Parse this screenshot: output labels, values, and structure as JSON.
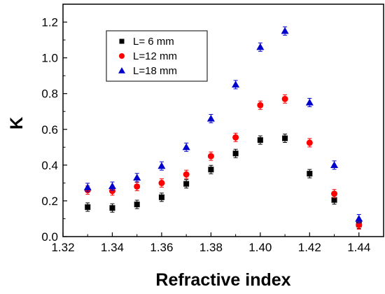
{
  "chart_data": {
    "type": "scatter",
    "xlabel": "Refractive index",
    "ylabel": "K",
    "xlim": [
      1.32,
      1.45
    ],
    "ylim": [
      0.0,
      1.3
    ],
    "x_ticks": [
      1.32,
      1.34,
      1.36,
      1.38,
      1.4,
      1.42,
      1.44
    ],
    "x_tick_labels": [
      "1.32",
      "1.34",
      "1.36",
      "1.38",
      "1.40",
      "1.42",
      "1.44"
    ],
    "y_ticks": [
      0.0,
      0.2,
      0.4,
      0.6,
      0.8,
      1.0,
      1.2
    ],
    "y_tick_labels": [
      "0.0",
      "0.2",
      "0.4",
      "0.6",
      "0.8",
      "1.0",
      "1.2"
    ],
    "grid": false,
    "legend_position": "top-left",
    "x": [
      1.33,
      1.34,
      1.35,
      1.36,
      1.37,
      1.38,
      1.39,
      1.4,
      1.41,
      1.42,
      1.43,
      1.44
    ],
    "series": [
      {
        "name": "L=  6 mm",
        "marker": "square",
        "color": "#000000",
        "values": [
          0.165,
          0.16,
          0.18,
          0.22,
          0.295,
          0.375,
          0.465,
          0.54,
          0.55,
          0.352,
          0.205,
          0.068
        ]
      },
      {
        "name": "L=12 mm",
        "marker": "circle",
        "color": "#ff0000",
        "values": [
          0.26,
          0.255,
          0.28,
          0.3,
          0.348,
          0.45,
          0.555,
          0.735,
          0.77,
          0.525,
          0.24,
          0.065
        ]
      },
      {
        "name": "L=18 mm",
        "marker": "triangle",
        "color": "#0000cc",
        "values": [
          0.275,
          0.282,
          0.33,
          0.395,
          0.5,
          0.66,
          0.85,
          1.06,
          1.15,
          0.75,
          0.4,
          0.1
        ]
      }
    ]
  }
}
